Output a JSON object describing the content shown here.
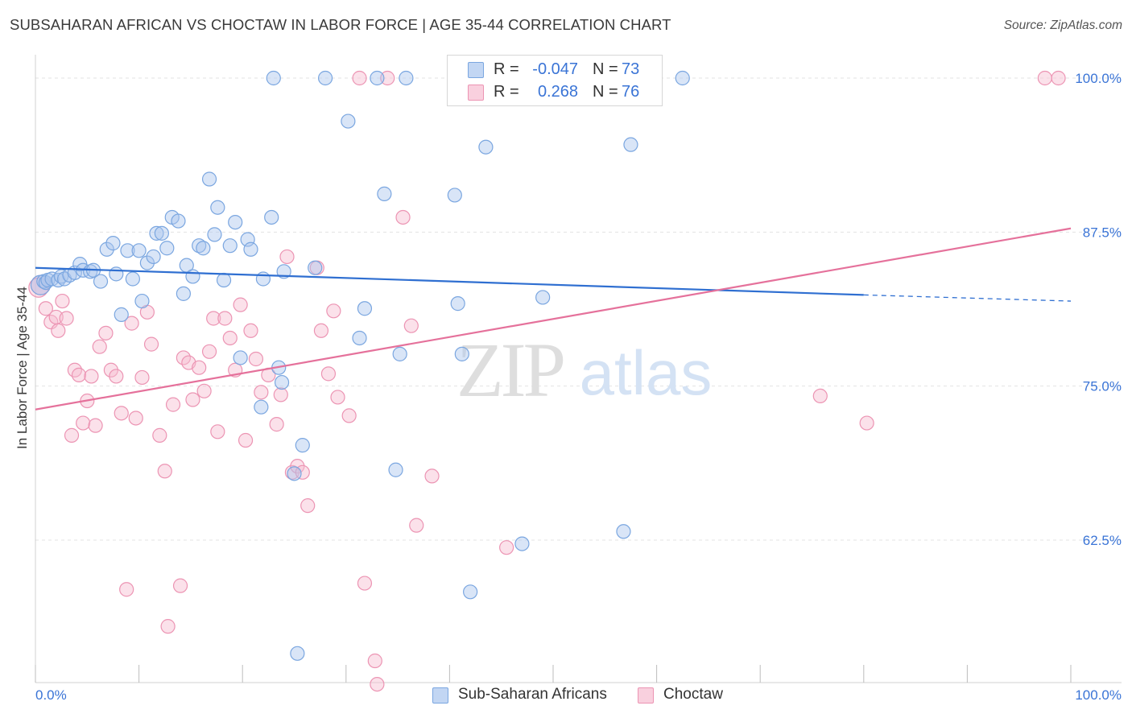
{
  "header": {
    "title": "SUBSAHARAN AFRICAN VS CHOCTAW IN LABOR FORCE | AGE 35-44 CORRELATION CHART",
    "source": "Source: ZipAtlas.com"
  },
  "watermark": {
    "zip": "ZIP",
    "atlas": "atlas"
  },
  "legend": {
    "rows": [
      {
        "r_label": "R =",
        "r_value": "-0.047",
        "n_label": "N =",
        "n_value": "73"
      },
      {
        "r_label": "R =",
        "r_value": "0.268",
        "n_label": "N =",
        "n_value": "76"
      }
    ]
  },
  "colors": {
    "blue_fill": "#aac6ee",
    "blue_stroke": "#7aa6e0",
    "blue_line": "#2f6fd1",
    "pink_fill": "#f6bcd0",
    "pink_stroke": "#ec94b3",
    "pink_line": "#e5719b",
    "axis_text": "#3a74d6",
    "grid": "#e3e3e3"
  },
  "chart_data": {
    "type": "scatter",
    "title": "SUBSAHARAN AFRICAN VS CHOCTAW IN LABOR FORCE | AGE 35-44 CORRELATION CHART",
    "xlabel": "",
    "ylabel": "In Labor Force | Age 35-44",
    "xlim": [
      0,
      100
    ],
    "ylim": [
      51.5,
      101.5
    ],
    "x_tick_labels": [
      "0.0%",
      "100.0%"
    ],
    "y_ticks": [
      62.5,
      75.0,
      87.5,
      100.0
    ],
    "y_tick_labels": [
      "62.5%",
      "75.0%",
      "87.5%",
      "100.0%"
    ],
    "grid": "horizontal dashed",
    "legend_position": "bottom-center",
    "series": [
      {
        "name": "Sub-Saharan Africans",
        "color": "blue",
        "R": -0.047,
        "N": 73,
        "trend": {
          "x": [
            0,
            80
          ],
          "y": [
            84.6,
            82.4
          ],
          "dashed_to": [
            100,
            81.9
          ]
        },
        "points": [
          [
            0.5,
            83.2
          ],
          [
            0.8,
            83.5
          ],
          [
            1.0,
            83.4
          ],
          [
            1.2,
            83.6
          ],
          [
            1.6,
            83.7
          ],
          [
            2.2,
            83.6
          ],
          [
            2.5,
            83.9
          ],
          [
            2.8,
            83.7
          ],
          [
            3.3,
            84.0
          ],
          [
            3.8,
            84.2
          ],
          [
            4.3,
            84.9
          ],
          [
            4.6,
            84.4
          ],
          [
            5.3,
            84.3
          ],
          [
            5.6,
            84.4
          ],
          [
            6.3,
            83.5
          ],
          [
            6.9,
            86.1
          ],
          [
            7.5,
            86.6
          ],
          [
            7.8,
            84.1
          ],
          [
            8.3,
            80.8
          ],
          [
            8.9,
            86.0
          ],
          [
            9.4,
            83.7
          ],
          [
            10.0,
            86.0
          ],
          [
            10.3,
            81.9
          ],
          [
            10.8,
            85.0
          ],
          [
            11.4,
            85.5
          ],
          [
            11.7,
            87.4
          ],
          [
            12.2,
            87.4
          ],
          [
            12.7,
            86.2
          ],
          [
            13.2,
            88.7
          ],
          [
            13.8,
            88.4
          ],
          [
            14.3,
            82.5
          ],
          [
            14.6,
            84.8
          ],
          [
            15.2,
            83.9
          ],
          [
            15.8,
            86.4
          ],
          [
            16.2,
            86.2
          ],
          [
            16.8,
            91.8
          ],
          [
            17.3,
            87.3
          ],
          [
            17.6,
            89.5
          ],
          [
            18.2,
            83.6
          ],
          [
            18.8,
            86.4
          ],
          [
            19.3,
            88.3
          ],
          [
            19.8,
            77.3
          ],
          [
            20.5,
            86.9
          ],
          [
            20.8,
            86.1
          ],
          [
            21.8,
            73.3
          ],
          [
            22.0,
            83.7
          ],
          [
            22.8,
            88.7
          ],
          [
            23.0,
            100.0
          ],
          [
            23.5,
            76.5
          ],
          [
            23.8,
            75.3
          ],
          [
            24.0,
            84.3
          ],
          [
            25.0,
            67.9
          ],
          [
            25.3,
            53.3
          ],
          [
            25.8,
            70.2
          ],
          [
            27.0,
            84.6
          ],
          [
            28.0,
            100.0
          ],
          [
            30.2,
            96.5
          ],
          [
            31.3,
            78.9
          ],
          [
            31.8,
            81.3
          ],
          [
            33.0,
            100.0
          ],
          [
            33.7,
            90.6
          ],
          [
            34.8,
            68.2
          ],
          [
            35.2,
            77.6
          ],
          [
            35.8,
            100.0
          ],
          [
            40.5,
            90.5
          ],
          [
            40.8,
            81.7
          ],
          [
            41.2,
            77.6
          ],
          [
            42.0,
            58.3
          ],
          [
            43.5,
            94.4
          ],
          [
            47.0,
            62.2
          ],
          [
            49.0,
            82.2
          ],
          [
            56.8,
            63.2
          ],
          [
            57.5,
            94.6
          ],
          [
            62.5,
            100.0
          ]
        ]
      },
      {
        "name": "Choctaw",
        "color": "pink",
        "R": 0.268,
        "N": 76,
        "trend": {
          "x": [
            0,
            100
          ],
          "y": [
            73.1,
            87.8
          ]
        },
        "points": [
          [
            0.5,
            83.2
          ],
          [
            1.0,
            81.3
          ],
          [
            1.5,
            80.2
          ],
          [
            2.0,
            80.6
          ],
          [
            2.2,
            79.5
          ],
          [
            2.6,
            81.9
          ],
          [
            3.0,
            80.5
          ],
          [
            3.5,
            71.0
          ],
          [
            3.8,
            76.3
          ],
          [
            4.2,
            75.9
          ],
          [
            4.6,
            72.0
          ],
          [
            5.0,
            73.8
          ],
          [
            5.4,
            75.8
          ],
          [
            5.8,
            71.8
          ],
          [
            6.2,
            78.2
          ],
          [
            6.8,
            79.3
          ],
          [
            7.3,
            76.3
          ],
          [
            7.8,
            75.8
          ],
          [
            8.3,
            72.8
          ],
          [
            8.8,
            58.5
          ],
          [
            9.3,
            80.1
          ],
          [
            9.7,
            72.4
          ],
          [
            10.3,
            75.7
          ],
          [
            10.8,
            81.0
          ],
          [
            11.2,
            78.4
          ],
          [
            12.0,
            71.0
          ],
          [
            12.5,
            68.1
          ],
          [
            12.8,
            55.5
          ],
          [
            13.3,
            73.5
          ],
          [
            14.0,
            58.8
          ],
          [
            14.3,
            77.3
          ],
          [
            14.8,
            76.9
          ],
          [
            15.2,
            73.9
          ],
          [
            15.8,
            76.5
          ],
          [
            16.3,
            74.6
          ],
          [
            16.8,
            77.8
          ],
          [
            17.2,
            80.5
          ],
          [
            17.6,
            71.3
          ],
          [
            18.3,
            80.5
          ],
          [
            18.8,
            78.9
          ],
          [
            19.3,
            76.3
          ],
          [
            19.8,
            81.6
          ],
          [
            20.3,
            70.6
          ],
          [
            20.8,
            79.5
          ],
          [
            21.3,
            77.2
          ],
          [
            21.8,
            74.5
          ],
          [
            22.5,
            75.9
          ],
          [
            23.3,
            71.9
          ],
          [
            23.7,
            74.3
          ],
          [
            24.3,
            85.5
          ],
          [
            24.8,
            68.0
          ],
          [
            25.3,
            68.5
          ],
          [
            25.8,
            68.0
          ],
          [
            26.3,
            65.3
          ],
          [
            27.2,
            84.6
          ],
          [
            27.6,
            79.5
          ],
          [
            28.3,
            76.0
          ],
          [
            28.8,
            81.1
          ],
          [
            29.2,
            74.1
          ],
          [
            30.3,
            72.6
          ],
          [
            31.3,
            100.0
          ],
          [
            31.8,
            59.0
          ],
          [
            32.8,
            52.7
          ],
          [
            33.0,
            50.8
          ],
          [
            34.0,
            100.0
          ],
          [
            35.5,
            88.7
          ],
          [
            36.3,
            79.9
          ],
          [
            36.8,
            63.7
          ],
          [
            38.3,
            67.7
          ],
          [
            45.5,
            61.9
          ],
          [
            46.5,
            100.0
          ],
          [
            75.8,
            74.2
          ],
          [
            80.3,
            72.0
          ],
          [
            97.5,
            100.0
          ],
          [
            98.8,
            100.0
          ],
          [
            0.3,
            83.0
          ]
        ]
      }
    ]
  }
}
